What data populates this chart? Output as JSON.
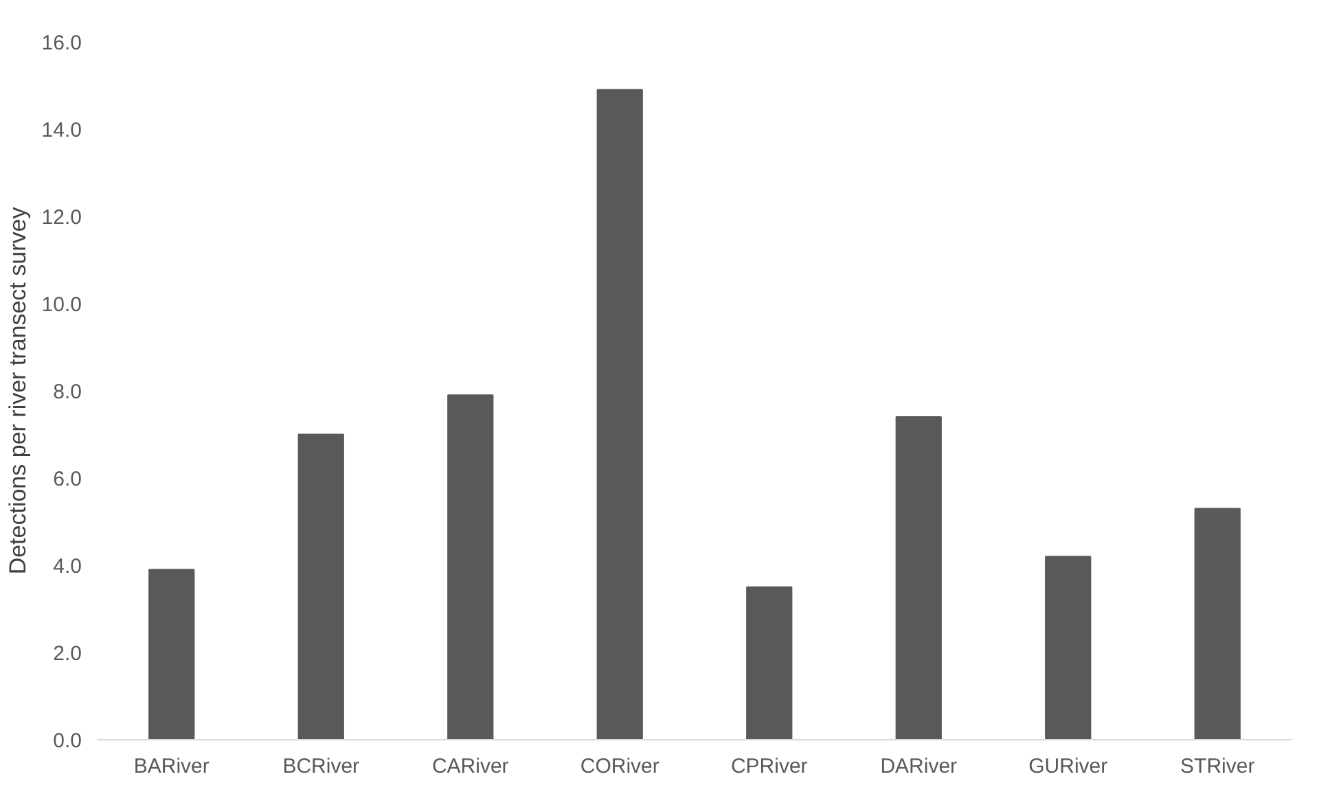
{
  "chart_data": {
    "type": "bar",
    "ylabel": "Detections per river transect survey",
    "categories": [
      "BARiver",
      "BCRiver",
      "CARiver",
      "CORiver",
      "CPRiver",
      "DARiver",
      "GURiver",
      "STRiver"
    ],
    "values": [
      3.9,
      7.0,
      7.9,
      14.9,
      3.5,
      7.4,
      4.2,
      5.3
    ],
    "color": "#595959",
    "ylim": [
      0,
      16
    ],
    "yticks": [
      {
        "value": 0,
        "label": "0.0"
      },
      {
        "value": 2,
        "label": "2.0"
      },
      {
        "value": 4,
        "label": "4.0"
      },
      {
        "value": 6,
        "label": "6.0"
      },
      {
        "value": 8,
        "label": "8.0"
      },
      {
        "value": 10,
        "label": "10.0"
      },
      {
        "value": 12,
        "label": "12.0"
      },
      {
        "value": 14,
        "label": "14.0"
      },
      {
        "value": 16,
        "label": "16.0"
      }
    ],
    "grid": false
  }
}
